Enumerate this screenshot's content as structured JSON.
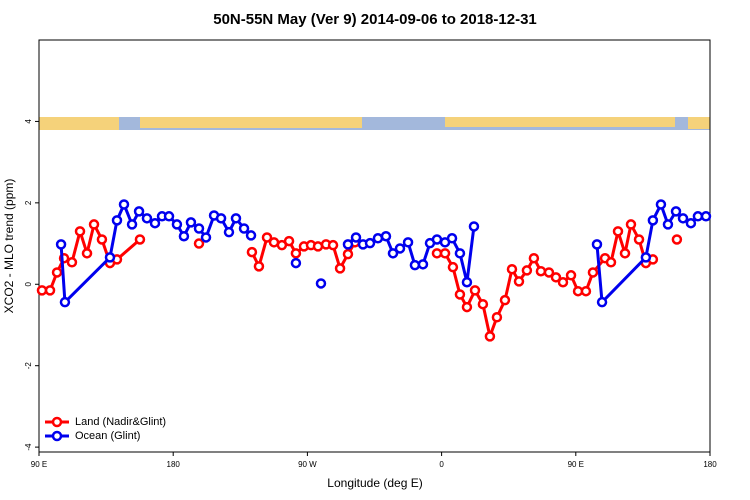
{
  "chart_data": {
    "type": "line",
    "title": "50N-55N May (Ver 9)   2014-09-06 to 2018-12-31",
    "x_label": "Longitude (deg E)",
    "y_label": "XCO2 - MLO trend (ppm)",
    "xlim": [
      90,
      540
    ],
    "ylim": [
      -4.12,
      6
    ],
    "xticks": [
      {
        "value": 90,
        "label": "90 E"
      },
      180,
      {
        "value": 270,
        "label": "90 W"
      },
      {
        "value": 360,
        "label": "0"
      },
      {
        "value": 450,
        "label": "90 E"
      },
      {
        "value": 540,
        "label": "180"
      }
    ],
    "yticks": [
      -4,
      -2,
      0,
      2,
      4
    ],
    "legend": "bottom-left",
    "series": [
      {
        "name": "Land (Nadir&Glint)",
        "color": "#ff0000",
        "x": [
          92.0,
          97.4,
          102.1,
          106.8,
          112.1,
          117.5,
          122.2,
          126.9,
          132.2,
          137.6,
          142.3,
          157.7,
          null,
          197.3,
          null,
          232.8,
          237.5,
          242.9,
          247.6,
          252.9,
          257.7,
          262.3,
          267.7,
          272.4,
          277.1,
          282.5,
          287.2,
          291.9,
          297.2,
          301.9,
          null,
          356.9,
          362.3,
          367.6,
          372.3,
          377.0,
          382.4,
          387.7,
          392.4,
          397.1,
          402.5,
          407.2,
          411.9,
          417.2,
          421.9,
          426.6,
          432.0,
          436.7,
          441.4,
          446.8,
          451.5,
          456.8,
          461.5,
          469.6,
          473.6,
          478.3,
          483.0,
          487.0,
          492.4,
          497.0,
          501.7,
          null,
          517.8
        ],
        "values": [
          -0.15,
          -0.15,
          0.29,
          0.64,
          0.54,
          1.3,
          0.76,
          1.47,
          1.1,
          0.52,
          0.61,
          1.1,
          null,
          1.0,
          null,
          0.79,
          0.44,
          1.15,
          1.03,
          0.96,
          1.06,
          0.76,
          0.93,
          0.96,
          0.93,
          0.98,
          0.96,
          0.39,
          0.74,
          1.03,
          null,
          0.76,
          0.76,
          0.42,
          -0.25,
          -0.56,
          -0.15,
          -0.49,
          -1.28,
          -0.81,
          -0.39,
          0.37,
          0.07,
          0.34,
          0.64,
          0.32,
          0.29,
          0.17,
          0.05,
          0.22,
          -0.17,
          -0.17,
          0.29,
          0.64,
          0.54,
          1.3,
          0.76,
          1.47,
          1.1,
          0.52,
          0.61,
          null,
          1.1
        ]
      },
      {
        "name": "Ocean (Glint)",
        "color": "#0000ee",
        "x": [
          104.8,
          107.4,
          137.6,
          142.3,
          147.0,
          152.4,
          157.1,
          162.4,
          167.8,
          172.5,
          177.2,
          182.5,
          187.2,
          191.9,
          197.3,
          202.0,
          207.4,
          212.1,
          217.4,
          222.1,
          227.5,
          232.2,
          null,
          262.3,
          null,
          279.1,
          null,
          297.2,
          302.6,
          307.3,
          312.0,
          317.3,
          322.7,
          327.4,
          332.1,
          337.5,
          342.1,
          347.5,
          352.2,
          356.9,
          362.3,
          367.0,
          372.3,
          377.0,
          381.7,
          null,
          464.2,
          467.6,
          497.0,
          501.7,
          507.1,
          511.8,
          517.2,
          521.9,
          527.2,
          531.9,
          537.3
        ],
        "values": [
          0.98,
          -0.44,
          0.66,
          1.57,
          1.96,
          1.47,
          1.79,
          1.62,
          1.5,
          1.67,
          1.67,
          1.47,
          1.18,
          1.52,
          1.37,
          1.15,
          1.69,
          1.62,
          1.28,
          1.62,
          1.37,
          1.2,
          null,
          0.52,
          null,
          0.02,
          null,
          0.98,
          1.15,
          0.98,
          1.01,
          1.13,
          1.18,
          0.76,
          0.88,
          1.03,
          0.47,
          0.49,
          1.01,
          1.1,
          1.03,
          1.13,
          0.76,
          0.05,
          1.42,
          null,
          0.98,
          -0.44,
          0.66,
          1.57,
          1.96,
          1.47,
          1.79,
          1.62,
          1.5,
          1.67,
          1.67
        ]
      }
    ]
  }
}
